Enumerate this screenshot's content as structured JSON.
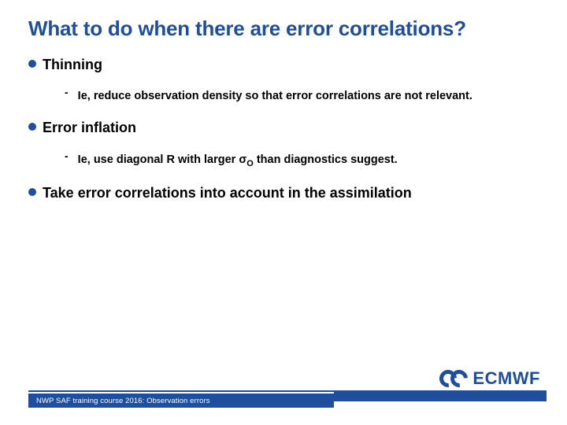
{
  "title": "What to do when there are error correlations?",
  "colors": {
    "accent": "#1f4e9c",
    "text": "#000000",
    "bg": "#ffffff"
  },
  "typography": {
    "title_size": 26,
    "b1_size": 18,
    "b2_size": 14.5,
    "footer_size": 9.5,
    "font_family": "Arial"
  },
  "bullets": [
    {
      "label": "Thinning",
      "sub": [
        "Ie, reduce observation density so that error correlations are not relevant."
      ]
    },
    {
      "label": "Error inflation",
      "sub": [
        "Ie, use diagonal R with larger σO than diagnostics suggest."
      ]
    },
    {
      "label": "Take error correlations into account in the assimilation",
      "sub": []
    }
  ],
  "sigma_sub": "O",
  "footer": {
    "text": "NWP SAF training course 2016: Observation errors"
  },
  "logo": {
    "text": "ECMWF"
  }
}
